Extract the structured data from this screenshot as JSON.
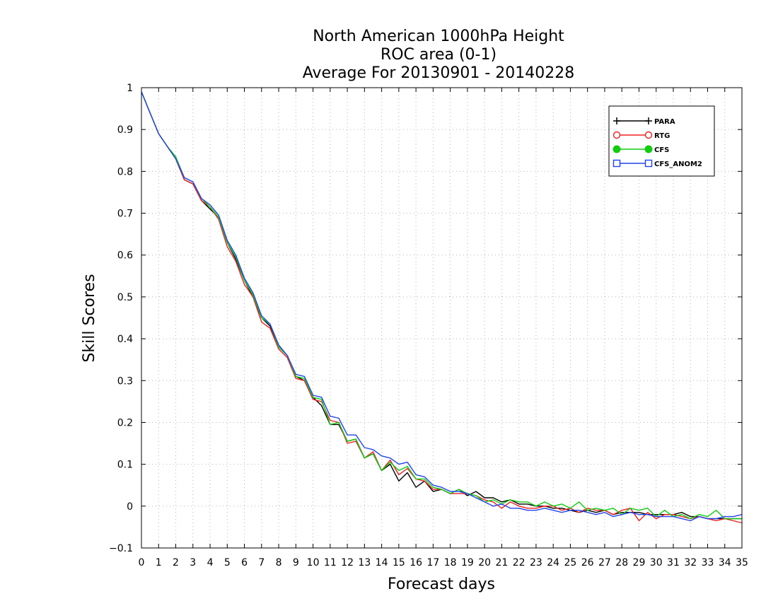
{
  "chart_data": {
    "type": "line",
    "title": [
      "North American 1000hPa Height",
      "ROC area (0-1)",
      "Average For 20130901 - 20140228"
    ],
    "xlabel": "Forecast days",
    "ylabel": "Skill Scores",
    "xlim": [
      0,
      35
    ],
    "ylim": [
      -0.1,
      1
    ],
    "xticks": [
      0,
      1,
      2,
      3,
      4,
      5,
      6,
      7,
      8,
      9,
      10,
      11,
      12,
      13,
      14,
      15,
      16,
      17,
      18,
      19,
      20,
      21,
      22,
      23,
      24,
      25,
      26,
      27,
      28,
      29,
      30,
      31,
      32,
      33,
      34,
      35
    ],
    "yticks": [
      -0.1,
      0,
      0.1,
      0.2,
      0.3,
      0.4,
      0.5,
      0.6,
      0.7,
      0.8,
      0.9,
      1
    ],
    "ytick_labels": [
      "−0.1",
      "0",
      "0.1",
      "0.2",
      "0.3",
      "0.4",
      "0.5",
      "0.6",
      "0.7",
      "0.8",
      "0.9",
      "1"
    ],
    "grid": true,
    "legend_position": "top-right",
    "x": [
      0,
      0.5,
      1,
      1.5,
      2,
      2.5,
      3,
      3.5,
      4,
      4.5,
      5,
      5.5,
      6,
      6.5,
      7,
      7.5,
      8,
      8.5,
      9,
      9.5,
      10,
      10.5,
      11,
      11.5,
      12,
      12.5,
      13,
      13.5,
      14,
      14.5,
      15,
      15.5,
      16,
      16.5,
      17,
      17.5,
      18,
      18.5,
      19,
      19.5,
      20,
      20.5,
      21,
      21.5,
      22,
      22.5,
      23,
      23.5,
      24,
      24.5,
      25,
      25.5,
      26,
      26.5,
      27,
      27.5,
      28,
      28.5,
      29,
      29.5,
      30,
      30.5,
      31,
      31.5,
      32,
      32.5,
      33,
      33.5,
      34,
      34.5,
      35
    ],
    "series": [
      {
        "name": "PARA",
        "color": "#000000",
        "marker": "plus",
        "values": [
          0.99,
          0.94,
          0.89,
          0.86,
          0.83,
          0.78,
          0.77,
          0.73,
          0.71,
          0.69,
          0.63,
          0.59,
          0.54,
          0.5,
          0.45,
          0.43,
          0.38,
          0.36,
          0.31,
          0.3,
          0.26,
          0.24,
          0.195,
          0.195,
          0.155,
          0.16,
          0.115,
          0.125,
          0.085,
          0.1,
          0.06,
          0.08,
          0.045,
          0.06,
          0.035,
          0.04,
          0.03,
          0.04,
          0.025,
          0.035,
          0.02,
          0.02,
          0.01,
          0.015,
          0.005,
          0.005,
          0.0,
          0.0,
          -0.005,
          -0.005,
          -0.01,
          -0.015,
          -0.01,
          -0.015,
          -0.01,
          -0.02,
          -0.015,
          -0.015,
          -0.015,
          -0.02,
          -0.02,
          -0.02,
          -0.02,
          -0.015,
          -0.025,
          -0.025,
          -0.03,
          -0.03,
          -0.03,
          -0.03,
          -0.03
        ]
      },
      {
        "name": "RTG",
        "color": "#ee2222",
        "marker": "circle",
        "values": [
          0.99,
          0.94,
          0.89,
          0.86,
          0.83,
          0.78,
          0.77,
          0.73,
          0.715,
          0.685,
          0.62,
          0.585,
          0.53,
          0.5,
          0.44,
          0.425,
          0.375,
          0.355,
          0.305,
          0.3,
          0.255,
          0.25,
          0.205,
          0.2,
          0.15,
          0.155,
          0.115,
          0.13,
          0.085,
          0.11,
          0.075,
          0.09,
          0.065,
          0.06,
          0.04,
          0.04,
          0.03,
          0.03,
          0.03,
          0.025,
          0.015,
          0.01,
          -0.005,
          0.01,
          0.0,
          -0.005,
          -0.005,
          0.0,
          0.0,
          -0.01,
          -0.005,
          -0.015,
          -0.005,
          -0.01,
          -0.01,
          -0.02,
          -0.01,
          -0.005,
          -0.035,
          -0.015,
          -0.03,
          -0.02,
          -0.02,
          -0.025,
          -0.03,
          -0.025,
          -0.03,
          -0.035,
          -0.03,
          -0.035,
          -0.04
        ]
      },
      {
        "name": "CFS",
        "color": "#11cc11",
        "marker": "dot",
        "values": [
          0.99,
          0.94,
          0.89,
          0.86,
          0.835,
          0.785,
          0.775,
          0.735,
          0.715,
          0.69,
          0.63,
          0.595,
          0.54,
          0.505,
          0.45,
          0.435,
          0.38,
          0.36,
          0.31,
          0.305,
          0.26,
          0.255,
          0.195,
          0.2,
          0.155,
          0.16,
          0.115,
          0.125,
          0.085,
          0.105,
          0.085,
          0.095,
          0.065,
          0.065,
          0.045,
          0.04,
          0.03,
          0.04,
          0.03,
          0.025,
          0.01,
          0.015,
          0.005,
          0.015,
          0.01,
          0.01,
          0.0,
          0.01,
          0.0,
          0.005,
          -0.005,
          0.01,
          -0.01,
          -0.005,
          -0.01,
          -0.005,
          -0.02,
          -0.005,
          -0.01,
          -0.005,
          -0.025,
          -0.01,
          -0.025,
          -0.02,
          -0.03,
          -0.02,
          -0.025,
          -0.01,
          -0.03,
          -0.03,
          -0.03
        ]
      },
      {
        "name": "CFS_ANOM2",
        "color": "#2244ee",
        "marker": "square",
        "values": [
          0.99,
          0.94,
          0.89,
          0.86,
          0.83,
          0.785,
          0.775,
          0.735,
          0.72,
          0.695,
          0.635,
          0.6,
          0.545,
          0.51,
          0.455,
          0.435,
          0.385,
          0.36,
          0.315,
          0.31,
          0.265,
          0.26,
          0.215,
          0.21,
          0.17,
          0.17,
          0.14,
          0.135,
          0.12,
          0.115,
          0.1,
          0.105,
          0.075,
          0.07,
          0.05,
          0.045,
          0.035,
          0.035,
          0.03,
          0.02,
          0.01,
          0.0,
          0.005,
          -0.005,
          -0.005,
          -0.01,
          -0.01,
          -0.005,
          -0.01,
          -0.015,
          -0.01,
          -0.01,
          -0.015,
          -0.02,
          -0.015,
          -0.025,
          -0.02,
          -0.015,
          -0.02,
          -0.02,
          -0.025,
          -0.025,
          -0.025,
          -0.03,
          -0.035,
          -0.025,
          -0.03,
          -0.03,
          -0.025,
          -0.025,
          -0.02
        ]
      }
    ]
  }
}
